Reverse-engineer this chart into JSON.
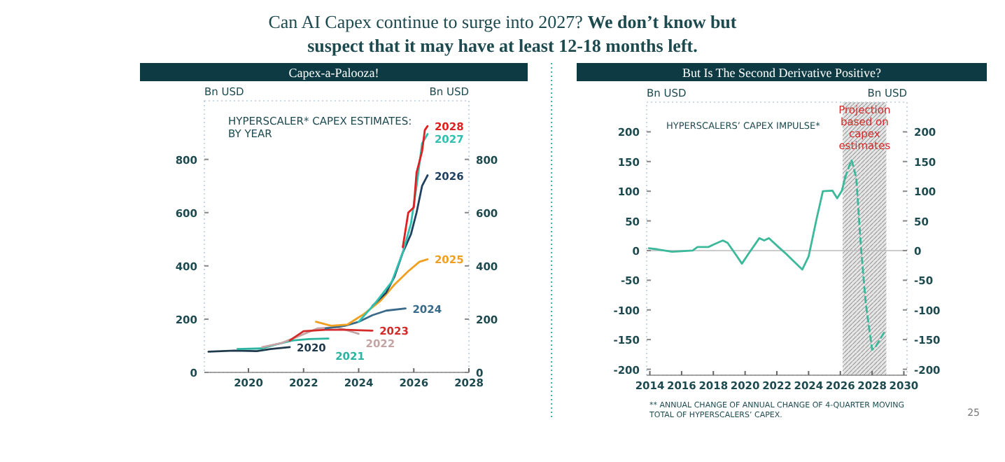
{
  "chart_data": [
    {
      "type": "line",
      "title": "Capex-a-Palooza!",
      "ylabel": "Bn USD",
      "y2label": "Bn USD",
      "annotations": [
        "Can AI Capex continue to surge into 2027?",
        "We don’t know but suspect that it may have at least 12-18 months left.",
        "HYPERSCALER* CAPEX ESTIMATES: BY YEAR"
      ],
      "xlim": [
        2018.4,
        2028
      ],
      "xticks": [
        2020,
        2022,
        2024,
        2026,
        2028
      ],
      "ylim": [
        0,
        1020
      ],
      "yticks": [
        0,
        200,
        400,
        600,
        800
      ],
      "y2lim": [
        0,
        1020
      ],
      "y2ticks": [
        0,
        200,
        400,
        600,
        800
      ],
      "grid": false,
      "line_style": "solid",
      "series": [
        {
          "name": "2020",
          "color": "#1f3a4d",
          "x": [
            2018.55,
            2019.5,
            2020.3,
            2020.8,
            2021.5
          ],
          "values": [
            78,
            82,
            80,
            88,
            95
          ]
        },
        {
          "name": "2021",
          "color": "#2bb5a0",
          "x": [
            2019.6,
            2020.5,
            2021.0,
            2021.6,
            2022.2,
            2022.9
          ],
          "values": [
            88,
            90,
            105,
            120,
            125,
            127
          ]
        },
        {
          "name": "2022",
          "color": "#c4a4a4",
          "x": [
            2020.5,
            2021.2,
            2021.8,
            2022.5,
            2023.2,
            2024.0
          ],
          "values": [
            95,
            110,
            135,
            165,
            170,
            145
          ]
        },
        {
          "name": "2023",
          "color": "#d42a2a",
          "x": [
            2021.5,
            2022.0,
            2022.8,
            2023.5,
            2024.5
          ],
          "values": [
            120,
            155,
            160,
            160,
            157
          ]
        },
        {
          "name": "2024",
          "color": "#3a6a8a",
          "x": [
            2022.8,
            2023.5,
            2024.0,
            2024.5,
            2025.0,
            2025.7
          ],
          "values": [
            165,
            175,
            190,
            215,
            232,
            240
          ]
        },
        {
          "name": "2025",
          "color": "#f0a020",
          "x": [
            2022.45,
            2023.0,
            2023.6,
            2024.2,
            2024.8,
            2025.3,
            2025.8,
            2026.2,
            2026.5
          ],
          "values": [
            190,
            175,
            180,
            220,
            270,
            330,
            380,
            415,
            425
          ]
        },
        {
          "name": "2026",
          "color": "#1f4060",
          "x": [
            2024.5,
            2025.0,
            2025.3,
            2025.6,
            2025.9,
            2026.1,
            2026.3,
            2026.5
          ],
          "values": [
            250,
            300,
            360,
            450,
            520,
            600,
            700,
            740
          ]
        },
        {
          "name": "2027",
          "color": "#30c0b0",
          "x": [
            2024.0,
            2024.6,
            2025.2,
            2025.6,
            2025.9,
            2026.1,
            2026.3,
            2026.5
          ],
          "values": [
            190,
            260,
            340,
            450,
            560,
            700,
            860,
            895
          ]
        },
        {
          "name": "2028",
          "color": "#e02020",
          "x": [
            2025.6,
            2025.8,
            2026.0,
            2026.1,
            2026.3,
            2026.4,
            2026.5
          ],
          "values": [
            470,
            600,
            620,
            750,
            830,
            910,
            925
          ]
        }
      ]
    },
    {
      "type": "line",
      "title": "But Is The Second Derivative Positive?",
      "ylabel": "Bn USD",
      "y2label": "Bn USD",
      "annotations": [
        "HYPERSCALERS’ CAPEX IMPULSE*",
        "** ANNUAL CHANGE OF ANNUAL CHANGE OF 4-QUARTER MOVING TOTAL OF HYPERSCALERS’ CAPEX.",
        "25"
      ],
      "xlim": [
        2013.8,
        2030.2
      ],
      "xticks": [
        2014,
        2016,
        2018,
        2020,
        2022,
        2024,
        2026,
        2028,
        2030
      ],
      "ylim": [
        -210,
        250
      ],
      "yticks": [
        -200,
        -150,
        -100,
        -50,
        0,
        50,
        100,
        150,
        200
      ],
      "y2lim": [
        -210,
        250
      ],
      "y2ticks": [
        -200,
        -150,
        -100,
        -50,
        0,
        50,
        100,
        150,
        200
      ],
      "grid": false,
      "ref_lines": [
        {
          "axis": "y",
          "value": 0,
          "color": "#bbbbbb"
        }
      ],
      "bands": [
        {
          "axis": "x",
          "from": 2026.15,
          "to": 2028.9,
          "label": "Projection based on capex estimates",
          "color": "#999999"
        }
      ],
      "series": [
        {
          "color": "#3cb89a",
          "line_style": "solid",
          "x": [
            2013.94,
            2014.5,
            2015.4,
            2016.0,
            2016.7,
            2017.0,
            2017.7,
            2018.0,
            2018.6,
            2018.9,
            2019.5,
            2019.8,
            2020.2,
            2020.9,
            2021.2,
            2021.5,
            2022.1,
            2022.6,
            2023.6,
            2024.0,
            2024.5,
            2024.9,
            2025.5,
            2025.8,
            2026.1,
            2026.3
          ],
          "values": [
            4,
            2,
            -2,
            -1,
            0,
            6,
            6,
            10,
            17,
            13,
            -10,
            -22,
            -6,
            21,
            17,
            21,
            6,
            -6,
            -32,
            -10,
            53,
            100,
            101,
            88,
            101,
            123
          ]
        },
        {
          "color": "#3cb89a",
          "line_style": "dashed",
          "x": [
            2026.3,
            2026.7,
            2027.0,
            2027.3,
            2027.6,
            2028.0,
            2028.2,
            2028.8
          ],
          "values": [
            123,
            153,
            123,
            5,
            -89,
            -167,
            -163,
            -136
          ]
        }
      ]
    }
  ]
}
